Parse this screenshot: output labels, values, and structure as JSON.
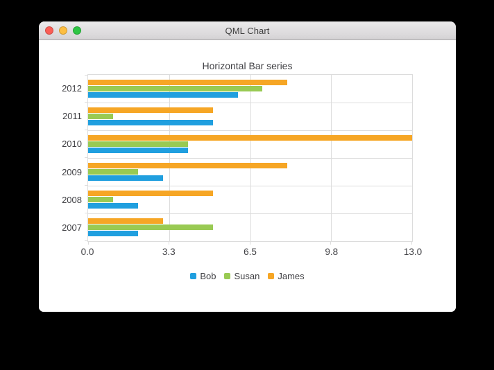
{
  "window": {
    "title": "QML Chart",
    "controls": {
      "close_color": "#FB5D55",
      "minimize_color": "#FDBE41",
      "zoom_color": "#2EC644"
    }
  },
  "chart_data": {
    "type": "bar",
    "orientation": "horizontal",
    "title": "Horizontal Bar series",
    "categories_top_to_bottom": [
      "2012",
      "2011",
      "2010",
      "2009",
      "2008",
      "2007"
    ],
    "series": [
      {
        "name": "Bob",
        "color": "#209FDF",
        "values_by_category": [
          6,
          5,
          4,
          3,
          2,
          2
        ]
      },
      {
        "name": "Susan",
        "color": "#99CA53",
        "values_by_category": [
          7,
          1,
          4,
          2,
          1,
          5
        ]
      },
      {
        "name": "James",
        "color": "#F6A625",
        "values_by_category": [
          8,
          5,
          13,
          8,
          5,
          3
        ]
      }
    ],
    "bar_order_top_to_bottom": [
      "James",
      "Susan",
      "Bob"
    ],
    "xaxis": {
      "min": 0,
      "max": 13,
      "tick_labels": [
        "0.0",
        "3.3",
        "6.5",
        "9.8",
        "13.0"
      ],
      "tick_positions_pct": [
        0,
        25,
        50,
        75,
        100
      ]
    },
    "legend": {
      "position": "bottom",
      "entries": [
        "Bob",
        "Susan",
        "James"
      ]
    },
    "grid": true,
    "gridline_color": "#DCDCDC",
    "label_color": "#404044",
    "plot_background": "#FFFFFF"
  }
}
